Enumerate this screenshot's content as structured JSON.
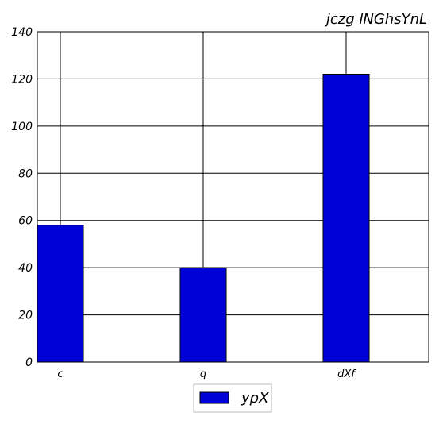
{
  "chart_data": {
    "type": "bar",
    "title": "jczg lNGhsYnL",
    "xlabel": "",
    "ylabel": "",
    "categories": [
      "c",
      "q",
      "dXf"
    ],
    "series": [
      {
        "name": "ypX",
        "values": [
          58,
          40,
          122
        ],
        "color": "#0000d8"
      }
    ],
    "ylim": [
      0,
      140
    ],
    "yticks": [
      0,
      20,
      40,
      60,
      80,
      100,
      120,
      140
    ],
    "grid": true,
    "legend_position": "bottom-center"
  }
}
